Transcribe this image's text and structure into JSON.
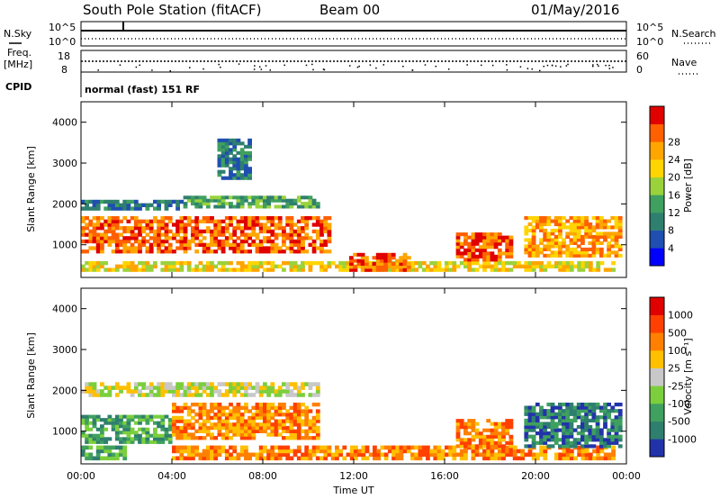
{
  "header": {
    "station": "South Pole Station (fitACF)",
    "beam": "Beam 00",
    "date": "01/May/2016"
  },
  "top_panels": {
    "nsky_label": "N.Sky",
    "nsky_top": "10^5",
    "nsky_bottom": "10^0",
    "nsearch_label": "N.Search",
    "nsearch_top": "10^5",
    "nsearch_bottom": "10^0",
    "freq_label": "Freq.",
    "freq_unit": "[MHz]",
    "freq_top": "18",
    "freq_bottom": "8",
    "nave_label": "Nave",
    "nave_top": "60",
    "nave_bottom": "0",
    "cpid_label": "CPID",
    "cpid_text": "normal (fast) 151 RF"
  },
  "colors": {
    "power_scale": [
      "#0000ff",
      "#1f4fb0",
      "#2f7f6f",
      "#3fa05f",
      "#9ad23c",
      "#ffd400",
      "#ffa500",
      "#ff6000",
      "#e00000"
    ],
    "velocity_scale": [
      "#2233aa",
      "#2f7f6f",
      "#3fa05f",
      "#7ccf3c",
      "#c8c8c8",
      "#ffc000",
      "#ff8000",
      "#ff4000",
      "#e00000"
    ]
  },
  "chart_data": [
    {
      "type": "heatmap",
      "name": "power",
      "xlabel": "",
      "ylabel": "Slant Range [km]",
      "xlim": [
        "00:00",
        "24:00"
      ],
      "ylim": [
        200,
        4500
      ],
      "yticks": [
        1000,
        2000,
        3000,
        4000
      ],
      "xticks": [
        "00:00",
        "04:00",
        "08:00",
        "12:00",
        "16:00",
        "20:00",
        "00:00"
      ],
      "colorbar": {
        "label": "Power [dB]",
        "ticks": [
          "4",
          "8",
          "12",
          "16",
          "20",
          "24",
          "28"
        ]
      },
      "bands": [
        {
          "t0": 0.0,
          "t1": 11.0,
          "r0": 800,
          "r1": 1700,
          "level": 7
        },
        {
          "t0": 0.0,
          "t1": 4.5,
          "r0": 1850,
          "r1": 2100,
          "level": 2
        },
        {
          "t0": 4.5,
          "t1": 10.5,
          "r0": 1900,
          "r1": 2200,
          "level": 3
        },
        {
          "t0": 0.0,
          "t1": 23.5,
          "r0": 350,
          "r1": 600,
          "level": 5
        },
        {
          "t0": 11.8,
          "t1": 14.5,
          "r0": 350,
          "r1": 800,
          "level": 7
        },
        {
          "t0": 16.5,
          "t1": 19.0,
          "r0": 600,
          "r1": 1300,
          "level": 7
        },
        {
          "t0": 19.5,
          "t1": 23.8,
          "r0": 700,
          "r1": 1700,
          "level": 6
        },
        {
          "t0": 6.0,
          "t1": 7.5,
          "r0": 2600,
          "r1": 3600,
          "level": 2
        }
      ]
    },
    {
      "type": "heatmap",
      "name": "velocity",
      "xlabel": "Time UT",
      "ylabel": "Slant Range [km]",
      "xlim": [
        "00:00",
        "24:00"
      ],
      "ylim": [
        200,
        4500
      ],
      "yticks": [
        1000,
        2000,
        3000,
        4000
      ],
      "xticks": [
        "00:00",
        "04:00",
        "08:00",
        "12:00",
        "16:00",
        "20:00",
        "00:00"
      ],
      "colorbar": {
        "label": "Velocity [m s⁻¹]",
        "ticks": [
          "1000",
          "500",
          "100",
          "25",
          "-25",
          "-100",
          "-500",
          "-1000"
        ]
      },
      "bands": [
        {
          "t0": 0.0,
          "t1": 4.0,
          "r0": 700,
          "r1": 1400,
          "level": 2
        },
        {
          "t0": 4.0,
          "t1": 10.5,
          "r0": 800,
          "r1": 1700,
          "level": 6
        },
        {
          "t0": 0.0,
          "t1": 10.5,
          "r0": 1850,
          "r1": 2200,
          "level": 4
        },
        {
          "t0": 4.0,
          "t1": 23.5,
          "r0": 300,
          "r1": 650,
          "level": 6
        },
        {
          "t0": 16.5,
          "t1": 19.0,
          "r0": 600,
          "r1": 1300,
          "level": 6
        },
        {
          "t0": 19.5,
          "t1": 23.8,
          "r0": 600,
          "r1": 1700,
          "level": 1
        },
        {
          "t0": 0.0,
          "t1": 2.0,
          "r0": 300,
          "r1": 650,
          "level": 2
        }
      ]
    }
  ]
}
